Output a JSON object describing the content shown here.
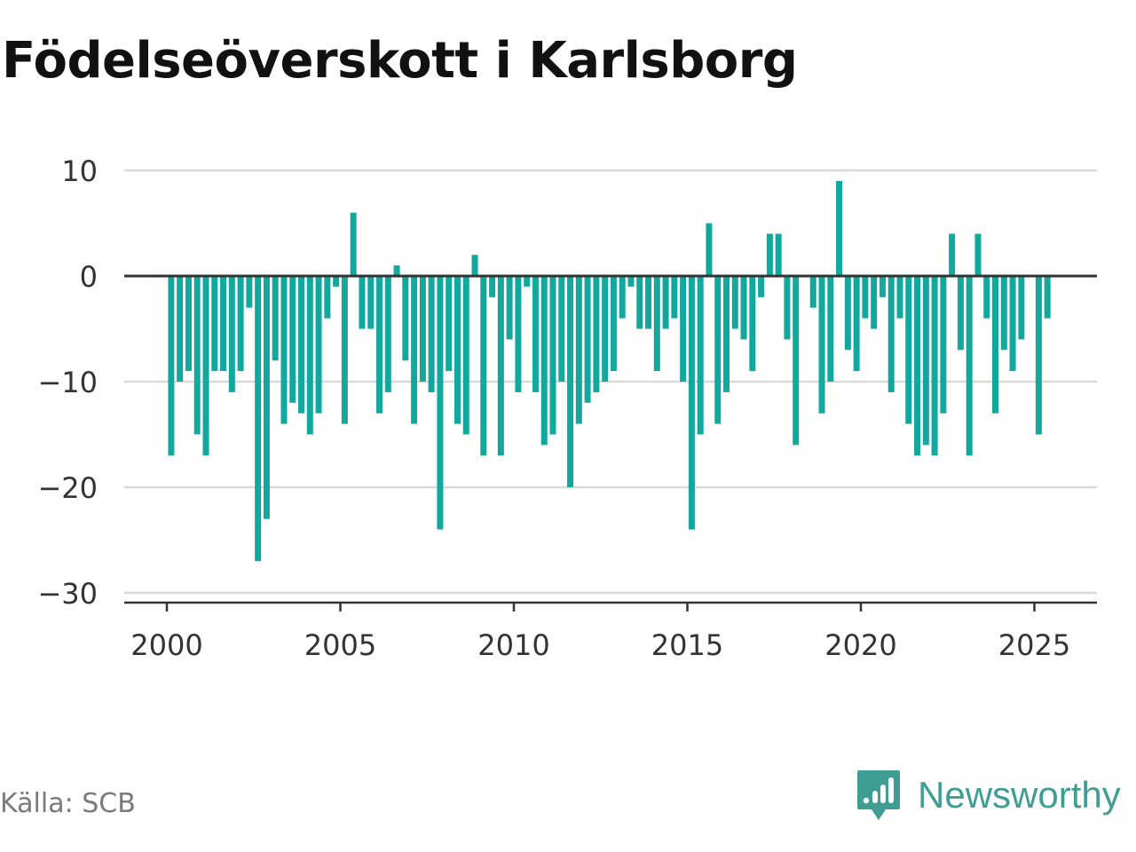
{
  "title": "Födelseöverskott i Karlsborg",
  "source": "Källa: SCB",
  "brand": {
    "name": "Newsworthy",
    "icon": "newsworthy-logo-icon",
    "color": "#3f9d94"
  },
  "chart_data": {
    "type": "bar",
    "title": "Födelseöverskott i Karlsborg",
    "xlabel": "",
    "ylabel": "",
    "ylim": [
      -30,
      10
    ],
    "yticks": [
      10,
      0,
      -10,
      -20,
      -30
    ],
    "ytick_labels": [
      "10",
      "0",
      "−10",
      "−20",
      "−30"
    ],
    "xticks": [
      2000,
      2005,
      2010,
      2015,
      2020,
      2025
    ],
    "xtick_labels": [
      "2000",
      "2005",
      "2010",
      "2015",
      "2020",
      "2025"
    ],
    "grid": true,
    "bar_color": "#12a89d",
    "start_period": "2000-01",
    "frequency": "quarterly",
    "values": [
      -17,
      -10,
      -9,
      -15,
      -17,
      -9,
      -9,
      -11,
      -9,
      -3,
      -27,
      -23,
      -8,
      -14,
      -12,
      -13,
      -15,
      -13,
      -4,
      -1,
      -14,
      6,
      -5,
      -5,
      -13,
      -11,
      1,
      -8,
      -14,
      -10,
      -11,
      -24,
      -9,
      -14,
      -15,
      2,
      -17,
      -2,
      -17,
      -6,
      -11,
      -1,
      -11,
      -16,
      -15,
      -10,
      -20,
      -14,
      -12,
      -11,
      -10,
      -9,
      -4,
      -1,
      -5,
      -5,
      -9,
      -5,
      -4,
      -10,
      -24,
      -15,
      5,
      -14,
      -11,
      -5,
      -6,
      -9,
      -2,
      4,
      4,
      -6,
      -16,
      0,
      -3,
      -13,
      -10,
      9,
      -7,
      -9,
      -4,
      -5,
      -2,
      -11,
      -4,
      -14,
      -17,
      -16,
      -17,
      -13,
      4,
      -7,
      -17,
      4,
      -4,
      -13,
      -7,
      -9,
      -6,
      0,
      -15,
      -4
    ]
  }
}
